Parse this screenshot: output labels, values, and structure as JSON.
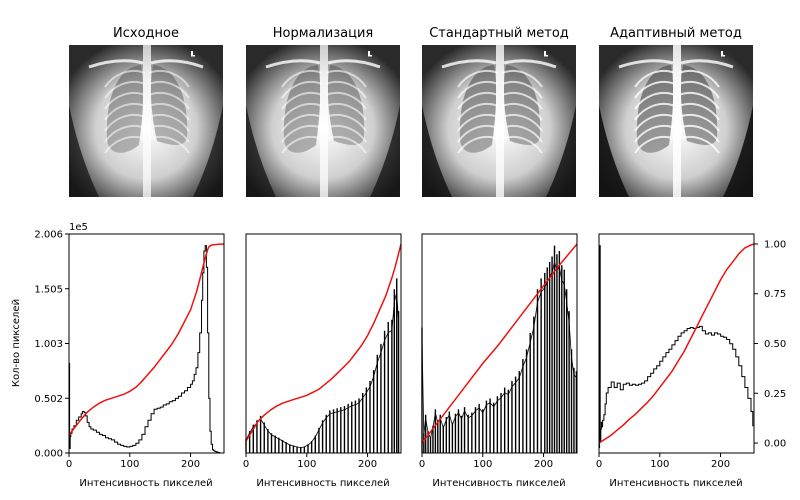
{
  "panel_titles": [
    "Исходное",
    "Нормализация",
    "Стандартный метод",
    "Адаптивный метод"
  ],
  "colors": {
    "histogram": "#000000",
    "cdf": "#ee1111",
    "axes": "#000000",
    "background": "#ffffff"
  },
  "chart_data": [
    {
      "type": "line",
      "title": "Исходное",
      "xlabel": "Интенсивность пикселей",
      "ylabel": "Кол-во пикселей",
      "xlim": [
        0,
        255
      ],
      "ylim": [
        0,
        200600
      ],
      "y_multiplier_label": "1e5",
      "xticks": [
        0,
        100,
        200
      ],
      "yticks": [
        0,
        50150,
        100300,
        150450,
        200600
      ],
      "ytick_labels": [
        "0.000",
        "0.502",
        "1.003",
        "1.505",
        "2.006"
      ],
      "series": [
        {
          "role": "histogram",
          "x": [
            0,
            1,
            2,
            3,
            5,
            8,
            12,
            16,
            20,
            22,
            25,
            27,
            30,
            33,
            36,
            40,
            45,
            50,
            55,
            60,
            65,
            70,
            75,
            80,
            85,
            90,
            95,
            100,
            105,
            110,
            115,
            120,
            125,
            130,
            135,
            140,
            145,
            150,
            155,
            160,
            165,
            170,
            175,
            180,
            185,
            190,
            195,
            200,
            203,
            206,
            209,
            212,
            215,
            218,
            220,
            222,
            224,
            226,
            228,
            230,
            232,
            234,
            236,
            238,
            240,
            242,
            245,
            248,
            252,
            255
          ],
          "y": [
            82000,
            4000,
            15000,
            18000,
            22000,
            25000,
            30000,
            33000,
            36000,
            38000,
            37000,
            34000,
            28000,
            24000,
            22000,
            21000,
            19000,
            17000,
            16000,
            14000,
            13000,
            12000,
            10000,
            8000,
            7000,
            6000,
            5500,
            6000,
            7000,
            9000,
            12000,
            17000,
            24000,
            30000,
            36000,
            40000,
            41000,
            42000,
            44000,
            45000,
            47000,
            48000,
            50000,
            52000,
            55000,
            57000,
            60000,
            63000,
            66000,
            72000,
            78000,
            92000,
            110000,
            140000,
            165000,
            185000,
            190000,
            170000,
            110000,
            50000,
            20000,
            8000,
            3000,
            2000,
            1500,
            1000,
            500,
            0,
            0,
            0
          ]
        },
        {
          "role": "cdf",
          "x": [
            0,
            10,
            20,
            30,
            40,
            50,
            60,
            70,
            80,
            90,
            100,
            110,
            120,
            130,
            140,
            150,
            160,
            170,
            180,
            190,
            200,
            210,
            215,
            220,
            225,
            228,
            230,
            232,
            235,
            240,
            245,
            255
          ],
          "y": [
            0.04,
            0.08,
            0.12,
            0.155,
            0.18,
            0.2,
            0.215,
            0.225,
            0.235,
            0.245,
            0.26,
            0.28,
            0.31,
            0.345,
            0.38,
            0.42,
            0.46,
            0.5,
            0.55,
            0.61,
            0.67,
            0.76,
            0.82,
            0.88,
            0.94,
            0.97,
            0.985,
            0.99,
            0.995,
            0.997,
            0.998,
            1.0
          ]
        }
      ]
    },
    {
      "type": "line",
      "title": "Нормализация",
      "xlabel": "Интенсивность пикселей",
      "xlim": [
        0,
        255
      ],
      "ylim": [
        0,
        200600
      ],
      "xticks": [
        0,
        100,
        200
      ],
      "series": [
        {
          "role": "histogram",
          "style": "comb",
          "x": [
            0,
            6,
            12,
            18,
            24,
            30,
            36,
            42,
            48,
            54,
            60,
            66,
            72,
            78,
            84,
            90,
            96,
            102,
            108,
            114,
            120,
            126,
            132,
            138,
            144,
            150,
            156,
            162,
            168,
            174,
            180,
            186,
            192,
            198,
            204,
            210,
            216,
            222,
            228,
            234,
            240,
            244,
            248,
            251
          ],
          "y": [
            13000,
            20000,
            26000,
            30000,
            34000,
            28000,
            22000,
            18000,
            16000,
            14000,
            12000,
            10000,
            8000,
            7000,
            6000,
            5500,
            6000,
            8000,
            11000,
            16000,
            23000,
            30000,
            35000,
            39000,
            40000,
            41000,
            42000,
            43000,
            45000,
            47000,
            48000,
            50000,
            55000,
            60000,
            66000,
            76000,
            90000,
            100000,
            112000,
            120000,
            122000,
            150000,
            160000,
            130000
          ]
        },
        {
          "role": "cdf",
          "x": [
            0,
            10,
            20,
            30,
            40,
            50,
            60,
            70,
            80,
            90,
            100,
            110,
            120,
            130,
            140,
            150,
            160,
            170,
            180,
            190,
            200,
            210,
            220,
            230,
            240,
            245,
            250,
            255
          ],
          "y": [
            0.01,
            0.06,
            0.11,
            0.14,
            0.165,
            0.185,
            0.2,
            0.21,
            0.22,
            0.23,
            0.24,
            0.255,
            0.27,
            0.295,
            0.32,
            0.35,
            0.38,
            0.41,
            0.45,
            0.49,
            0.54,
            0.6,
            0.67,
            0.74,
            0.83,
            0.88,
            0.94,
            1.0
          ]
        }
      ]
    },
    {
      "type": "line",
      "title": "Стандартный метод",
      "xlabel": "Интенсивность пикселей",
      "xlim": [
        0,
        255
      ],
      "ylim": [
        0,
        200600
      ],
      "xticks": [
        0,
        100,
        200
      ],
      "series": [
        {
          "role": "histogram",
          "style": "comb",
          "x": [
            0,
            3,
            6,
            10,
            14,
            18,
            22,
            26,
            30,
            35,
            40,
            45,
            50,
            55,
            60,
            65,
            70,
            76,
            82,
            88,
            94,
            100,
            106,
            112,
            118,
            124,
            130,
            136,
            142,
            148,
            154,
            160,
            166,
            172,
            178,
            184,
            190,
            196,
            202,
            206,
            210,
            214,
            218,
            222,
            226,
            230,
            234,
            238,
            242,
            246,
            250,
            254
          ],
          "y": [
            115000,
            18000,
            35000,
            20000,
            15000,
            25000,
            40000,
            30000,
            35000,
            25000,
            33000,
            38000,
            28000,
            36000,
            40000,
            34000,
            42000,
            35000,
            37000,
            42000,
            45000,
            40000,
            48000,
            50000,
            46000,
            52000,
            55000,
            60000,
            58000,
            66000,
            70000,
            75000,
            86000,
            95000,
            110000,
            125000,
            150000,
            160000,
            165000,
            170000,
            175000,
            180000,
            190000,
            182000,
            185000,
            172000,
            168000,
            150000,
            130000,
            95000,
            78000,
            75000
          ]
        },
        {
          "role": "cdf",
          "x": [
            0,
            25,
            50,
            75,
            100,
            125,
            150,
            175,
            200,
            225,
            255
          ],
          "y": [
            0.0,
            0.1,
            0.2,
            0.3,
            0.4,
            0.49,
            0.59,
            0.69,
            0.79,
            0.89,
            1.0
          ]
        }
      ]
    },
    {
      "type": "line",
      "title": "Адаптивный метод",
      "xlabel": "Интенсивность пикселей",
      "xlim": [
        0,
        255
      ],
      "ylim": [
        0,
        200600
      ],
      "y2lim": [
        -0.05,
        1.05
      ],
      "xticks": [
        0,
        100,
        200
      ],
      "y2ticks": [
        0,
        0.25,
        0.5,
        0.75,
        1.0
      ],
      "y2tick_labels": [
        "0.00",
        "0.25",
        "0.50",
        "0.75",
        "1.00"
      ],
      "series": [
        {
          "role": "histogram",
          "x": [
            0,
            1,
            2,
            3,
            4,
            5,
            6,
            8,
            10,
            12,
            15,
            20,
            25,
            30,
            35,
            40,
            45,
            50,
            55,
            60,
            65,
            70,
            75,
            80,
            85,
            90,
            95,
            100,
            105,
            110,
            115,
            120,
            125,
            130,
            135,
            140,
            145,
            150,
            155,
            160,
            165,
            170,
            175,
            180,
            185,
            190,
            195,
            200,
            205,
            210,
            215,
            220,
            225,
            230,
            235,
            240,
            245,
            250,
            253,
            255
          ],
          "y": [
            5000,
            190000,
            10000,
            22000,
            28000,
            24000,
            30000,
            35000,
            45000,
            55000,
            60000,
            65000,
            60000,
            64000,
            58000,
            63000,
            64000,
            62000,
            63000,
            62000,
            63000,
            64000,
            66000,
            70000,
            73000,
            77000,
            80000,
            84000,
            88000,
            92000,
            95000,
            99000,
            103000,
            107000,
            110000,
            112000,
            114000,
            115000,
            114000,
            115000,
            116000,
            112000,
            109000,
            110000,
            108000,
            110000,
            109000,
            107000,
            106000,
            104000,
            100000,
            95000,
            88000,
            80000,
            70000,
            60000,
            50000,
            38000,
            25000,
            20000
          ]
        },
        {
          "role": "cdf",
          "x": [
            0,
            10,
            20,
            30,
            40,
            50,
            60,
            70,
            80,
            90,
            100,
            110,
            120,
            130,
            140,
            150,
            160,
            170,
            180,
            190,
            200,
            210,
            220,
            230,
            240,
            250,
            255
          ],
          "y": [
            0.0,
            0.02,
            0.04,
            0.065,
            0.09,
            0.12,
            0.145,
            0.175,
            0.205,
            0.24,
            0.28,
            0.32,
            0.36,
            0.41,
            0.46,
            0.52,
            0.58,
            0.64,
            0.7,
            0.76,
            0.82,
            0.87,
            0.91,
            0.95,
            0.98,
            0.995,
            1.0
          ]
        }
      ]
    }
  ]
}
